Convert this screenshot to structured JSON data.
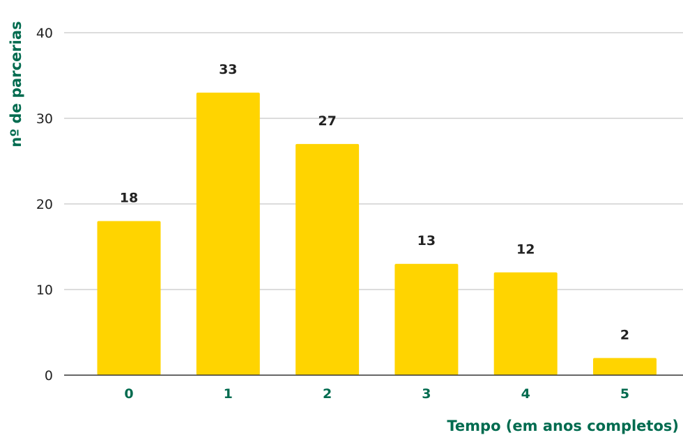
{
  "chart_data": {
    "type": "bar",
    "categories": [
      "0",
      "1",
      "2",
      "3",
      "4",
      "5"
    ],
    "values": [
      18,
      33,
      27,
      13,
      12,
      2
    ],
    "xlabel": "Tempo (em anos completos)",
    "ylabel": "nº de parcerias",
    "ylim": [
      0,
      40
    ],
    "yticks": [
      0,
      10,
      20,
      30,
      40
    ],
    "grid": true,
    "data_labels": true,
    "colors": {
      "bar": "#FFD400",
      "axis_title": "#006B4F",
      "x_tick": "#006B4F",
      "grid": "#C8C8C8",
      "baseline": "#333333",
      "text": "#222222"
    }
  }
}
